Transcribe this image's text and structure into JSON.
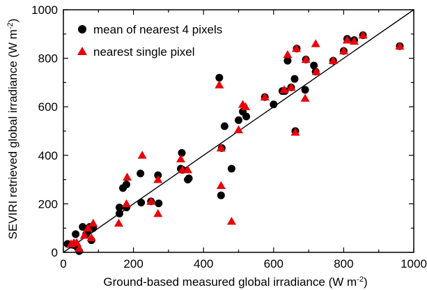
{
  "chart_data": {
    "type": "scatter",
    "xlabel_main": "Ground-based measured global irradiance (W m",
    "xlabel_sup": "-2",
    "xlabel_end": ")",
    "ylabel_main": "SEVIRI retrieved global irradiance (W m",
    "ylabel_sup": "-2",
    "ylabel_end": ")",
    "xlim": [
      0,
      1000
    ],
    "ylim": [
      0,
      1000
    ],
    "xticks": [
      "0",
      "200",
      "400",
      "600",
      "800",
      "1000"
    ],
    "yticks": [
      "0",
      "200",
      "400",
      "600",
      "800",
      "1000"
    ],
    "legend_position": "top-left",
    "one_to_one_line": true,
    "series": [
      {
        "name": "mean of nearest 4 pixels",
        "marker": "circle",
        "color": "#000000",
        "points": [
          [
            12,
            35
          ],
          [
            22,
            32
          ],
          [
            30,
            30
          ],
          [
            35,
            75
          ],
          [
            40,
            20
          ],
          [
            45,
            5
          ],
          [
            55,
            105
          ],
          [
            65,
            75
          ],
          [
            70,
            90
          ],
          [
            75,
            105
          ],
          [
            80,
            50
          ],
          [
            85,
            100
          ],
          [
            160,
            160
          ],
          [
            160,
            185
          ],
          [
            170,
            265
          ],
          [
            180,
            280
          ],
          [
            180,
            185
          ],
          [
            220,
            325
          ],
          [
            222,
            205
          ],
          [
            250,
            210
          ],
          [
            270,
            318
          ],
          [
            272,
            202
          ],
          [
            335,
            345
          ],
          [
            338,
            410
          ],
          [
            340,
            340
          ],
          [
            355,
            300
          ],
          [
            358,
            305
          ],
          [
            445,
            720
          ],
          [
            450,
            235
          ],
          [
            452,
            430
          ],
          [
            460,
            520
          ],
          [
            480,
            345
          ],
          [
            500,
            545
          ],
          [
            512,
            580
          ],
          [
            522,
            560
          ],
          [
            575,
            640
          ],
          [
            600,
            610
          ],
          [
            625,
            665
          ],
          [
            632,
            665
          ],
          [
            640,
            790
          ],
          [
            650,
            680
          ],
          [
            660,
            715
          ],
          [
            662,
            500
          ],
          [
            666,
            840
          ],
          [
            690,
            670
          ],
          [
            692,
            795
          ],
          [
            715,
            770
          ],
          [
            720,
            745
          ],
          [
            770,
            790
          ],
          [
            800,
            830
          ],
          [
            810,
            880
          ],
          [
            830,
            875
          ],
          [
            855,
            895
          ],
          [
            960,
            850
          ]
        ]
      },
      {
        "name": "nearest single pixel",
        "marker": "triangle",
        "color": "#e8000b",
        "points": [
          [
            22,
            35
          ],
          [
            30,
            40
          ],
          [
            38,
            40
          ],
          [
            45,
            15
          ],
          [
            60,
            70
          ],
          [
            70,
            100
          ],
          [
            80,
            60
          ],
          [
            85,
            120
          ],
          [
            158,
            120
          ],
          [
            180,
            200
          ],
          [
            182,
            310
          ],
          [
            225,
            400
          ],
          [
            250,
            210
          ],
          [
            270,
            300
          ],
          [
            270,
            160
          ],
          [
            335,
            385
          ],
          [
            340,
            340
          ],
          [
            355,
            340
          ],
          [
            445,
            690
          ],
          [
            450,
            275
          ],
          [
            450,
            430
          ],
          [
            480,
            128
          ],
          [
            500,
            505
          ],
          [
            512,
            610
          ],
          [
            520,
            600
          ],
          [
            575,
            640
          ],
          [
            630,
            670
          ],
          [
            640,
            815
          ],
          [
            650,
            680
          ],
          [
            662,
            495
          ],
          [
            665,
            840
          ],
          [
            690,
            635
          ],
          [
            692,
            795
          ],
          [
            720,
            860
          ],
          [
            722,
            745
          ],
          [
            770,
            790
          ],
          [
            800,
            830
          ],
          [
            810,
            875
          ],
          [
            830,
            870
          ],
          [
            855,
            895
          ],
          [
            960,
            850
          ]
        ]
      }
    ]
  }
}
